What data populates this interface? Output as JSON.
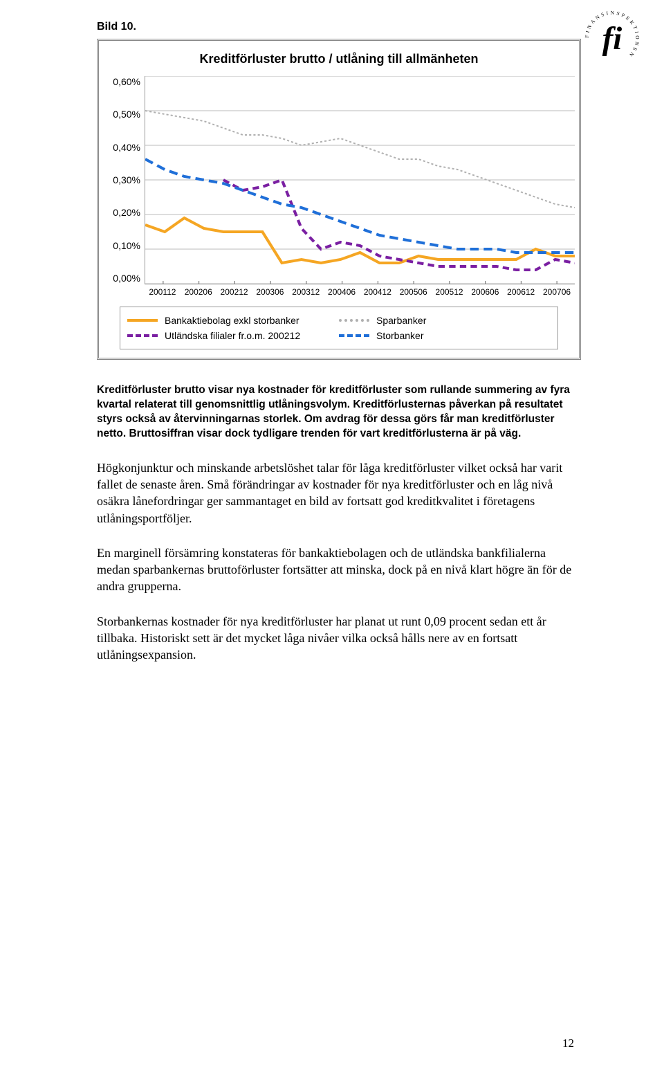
{
  "logo_text": "FINANSINSPEKTIONEN",
  "figure_label": "Bild 10.",
  "chart": {
    "type": "line",
    "title": "Kreditförluster brutto / utlåning till allmänheten",
    "y_labels": [
      "0,60%",
      "0,50%",
      "0,40%",
      "0,30%",
      "0,20%",
      "0,10%",
      "0,00%"
    ],
    "ylim": [
      0,
      0.6
    ],
    "ytick_step": 0.1,
    "x_labels": [
      "200112",
      "200206",
      "200212",
      "200306",
      "200312",
      "200406",
      "200412",
      "200506",
      "200512",
      "200606",
      "200612",
      "200706"
    ],
    "background_color": "#ffffff",
    "grid_color": "#bbbbbb",
    "axis_font_size": 14,
    "title_font_size": 18,
    "series": [
      {
        "name": "Bankaktiebolag exkl storbanker",
        "color": "#f5a623",
        "width": 4,
        "dash": "none",
        "values": [
          0.17,
          0.15,
          0.19,
          0.16,
          0.15,
          0.15,
          0.15,
          0.06,
          0.07,
          0.06,
          0.07,
          0.09,
          0.06,
          0.06,
          0.08,
          0.07,
          0.07,
          0.07,
          0.07,
          0.07,
          0.1,
          0.08,
          0.08
        ]
      },
      {
        "name": "Sparbanker",
        "color": "#b0b0b0",
        "width": 2,
        "dash": "3,3",
        "values": [
          0.5,
          0.49,
          0.48,
          0.47,
          0.45,
          0.43,
          0.43,
          0.42,
          0.4,
          0.41,
          0.42,
          0.4,
          0.38,
          0.36,
          0.36,
          0.34,
          0.33,
          0.31,
          0.29,
          0.27,
          0.25,
          0.23,
          0.22
        ]
      },
      {
        "name": "Utländska filialer fr.o.m. 200212",
        "color": "#7a1fa2",
        "width": 4,
        "dash": "9,6",
        "values": [
          null,
          null,
          null,
          null,
          0.3,
          0.27,
          0.28,
          0.3,
          0.16,
          0.1,
          0.12,
          0.11,
          0.08,
          0.07,
          0.06,
          0.05,
          0.05,
          0.05,
          0.05,
          0.04,
          0.04,
          0.07,
          0.06
        ]
      },
      {
        "name": "Storbanker",
        "color": "#1f6fd8",
        "width": 4,
        "dash": "12,7",
        "values": [
          0.36,
          0.33,
          0.31,
          0.3,
          0.29,
          0.27,
          0.25,
          0.23,
          0.22,
          0.2,
          0.18,
          0.16,
          0.14,
          0.13,
          0.12,
          0.11,
          0.1,
          0.1,
          0.1,
          0.09,
          0.09,
          0.09,
          0.09
        ]
      }
    ],
    "legend": [
      {
        "label": "Bankaktiebolag exkl storbanker",
        "color": "#f5a623",
        "dash": "solid"
      },
      {
        "label": "Sparbanker",
        "color": "#b0b0b0",
        "dash": "dotted"
      },
      {
        "label": "Utländska filialer fr.o.m. 200212",
        "color": "#7a1fa2",
        "dash": "dashed"
      },
      {
        "label": "Storbanker",
        "color": "#1f6fd8",
        "dash": "dashed"
      }
    ]
  },
  "caption": "Kreditförluster brutto visar nya kostnader för kreditförluster som rullande summering av fyra kvartal relaterat till genomsnittlig utlåningsvolym. Kreditförlusternas påverkan på resultatet styrs också av återvinningarnas storlek. Om avdrag för dessa görs får man kreditförluster netto. Bruttosiffran visar dock tydligare trenden för vart kreditförlusterna är på väg.",
  "paragraphs": [
    "Högkonjunktur och minskande arbetslöshet talar för låga kreditförluster vilket också har varit fallet de senaste åren. Små förändringar av kostnader för nya kreditförluster och en låg nivå osäkra lånefordringar ger sammantaget en bild av fortsatt god kreditkvalitet i företagens utlåningsportföljer.",
    "En marginell försämring konstateras för bankaktiebolagen och de utländska bankfilialerna medan sparbankernas bruttoförluster fortsätter att minska, dock på en nivå klart högre än för de andra grupperna.",
    "Storbankernas kostnader för nya kreditförluster har planat ut runt 0,09 procent sedan ett år tillbaka. Historiskt sett är det mycket låga nivåer vilka också hålls nere av en fortsatt utlåningsexpansion."
  ],
  "page_number": "12"
}
